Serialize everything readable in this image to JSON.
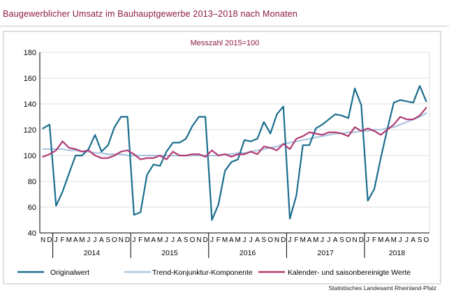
{
  "header": {
    "title": "Baugewerblicher Umsatz im Bauhauptgewerbe 2013–2018 nach Monaten"
  },
  "footer": {
    "source": "Statistisches Landesamt Rheinland-Pfalz"
  },
  "colors": {
    "original": "#1a6e8e",
    "trend": "#a9c6df",
    "adjusted": "#b03a73",
    "title": "#8e1a3b",
    "subtitle": "#8e1a3b"
  },
  "chart_data": {
    "type": "line",
    "subtitle": "Messzahl 2015=100",
    "ylim": [
      40,
      180
    ],
    "yticks": [
      40,
      60,
      80,
      100,
      120,
      140,
      160,
      180
    ],
    "grid": true,
    "legend_position": "bottom",
    "month_labels": [
      "N",
      "D",
      "J",
      "F",
      "M",
      "A",
      "M",
      "J",
      "J",
      "A",
      "S",
      "O",
      "N",
      "D",
      "J",
      "F",
      "M",
      "A",
      "M",
      "J",
      "J",
      "A",
      "S",
      "O",
      "N",
      "D",
      "J",
      "F",
      "M",
      "A",
      "M",
      "J",
      "J",
      "A",
      "S",
      "O",
      "N",
      "D",
      "J",
      "F",
      "M",
      "A",
      "M",
      "J",
      "J",
      "A",
      "S",
      "O",
      "N",
      "D",
      "J",
      "F",
      "M",
      "A",
      "M",
      "J",
      "J",
      "A",
      "S",
      "O"
    ],
    "year_groups": [
      {
        "label": "2014",
        "start": 2,
        "end": 13
      },
      {
        "label": "2015",
        "start": 14,
        "end": 25
      },
      {
        "label": "2016",
        "start": 26,
        "end": 37
      },
      {
        "label": "2017",
        "start": 38,
        "end": 49
      },
      {
        "label": "2018",
        "start": 50,
        "end": 59
      }
    ],
    "series": [
      {
        "name": "Originalwert",
        "values": [
          121,
          124,
          61,
          72,
          86,
          100,
          100,
          105,
          116,
          103,
          108,
          122,
          130,
          130,
          54,
          56,
          85,
          93,
          92,
          103,
          110,
          110,
          113,
          123,
          130,
          130,
          50,
          62,
          88,
          95,
          97,
          112,
          111,
          113,
          126,
          117,
          132,
          138,
          51,
          69,
          108,
          108,
          121,
          124,
          128,
          132,
          131,
          129,
          152,
          139,
          65,
          74,
          98,
          120,
          141,
          143,
          142,
          141,
          154,
          142
        ]
      },
      {
        "name": "Trend-Konjunktur-Komponente",
        "values": [
          105,
          105,
          105,
          105,
          104,
          104,
          103,
          103,
          102,
          102,
          101,
          101,
          101,
          100,
          100,
          100,
          100,
          100,
          100,
          100,
          100,
          100,
          100,
          100,
          100,
          100,
          100,
          100,
          101,
          101,
          102,
          102,
          103,
          104,
          105,
          106,
          107,
          109,
          110,
          111,
          112,
          113,
          114,
          115,
          116,
          117,
          117,
          118,
          118,
          119,
          119,
          120,
          120,
          121,
          122,
          124,
          126,
          128,
          130,
          133
        ]
      },
      {
        "name": "Kalender- und saisonbereinigte Werte",
        "values": [
          99,
          101,
          104,
          111,
          106,
          105,
          103,
          104,
          100,
          98,
          98,
          100,
          103,
          104,
          101,
          97,
          98,
          98,
          100,
          97,
          103,
          100,
          100,
          101,
          101,
          99,
          104,
          100,
          101,
          99,
          101,
          101,
          103,
          101,
          107,
          106,
          104,
          109,
          105,
          113,
          115,
          118,
          117,
          116,
          118,
          118,
          117,
          115,
          122,
          119,
          121,
          119,
          116,
          120,
          124,
          130,
          128,
          128,
          131,
          137
        ]
      }
    ]
  }
}
